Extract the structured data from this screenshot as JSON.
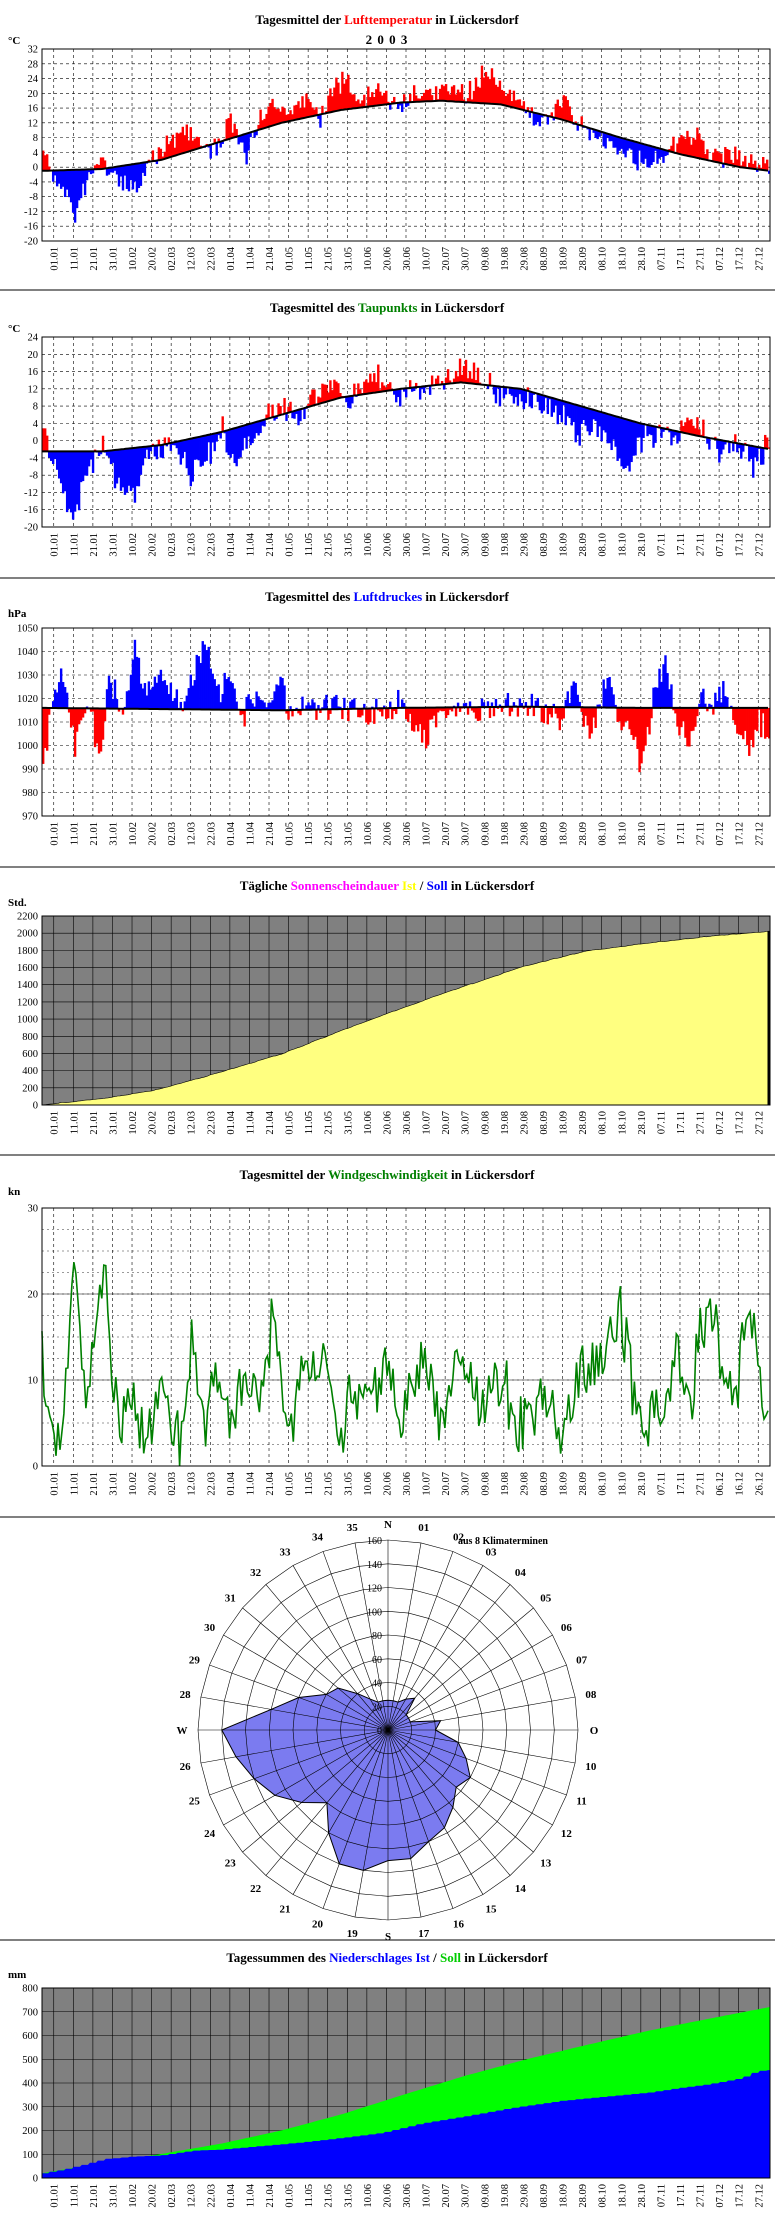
{
  "panels": {
    "temp": {
      "title": [
        {
          "text": "Tagesmittel der ",
          "color": "#000000"
        },
        {
          "text": "Lufttemperatur",
          "color": "#ff0000"
        },
        {
          "text": " in Lückersdorf",
          "color": "#000000"
        }
      ],
      "subtitle": "2 0 0 3",
      "unit": "°C"
    },
    "dew": {
      "title": [
        {
          "text": "Tagesmittel des ",
          "color": "#000000"
        },
        {
          "text": "Taupunkts",
          "color": "#008000"
        },
        {
          "text": " in Lückersdorf",
          "color": "#000000"
        }
      ],
      "unit": "°C"
    },
    "press": {
      "title": [
        {
          "text": "Tagesmittel des ",
          "color": "#000000"
        },
        {
          "text": "Luftdruckes",
          "color": "#0000ff"
        },
        {
          "text": " in Lückersdorf",
          "color": "#000000"
        }
      ],
      "unit": "hPa"
    },
    "sun": {
      "title": [
        {
          "text": "Tägliche ",
          "color": "#000000"
        },
        {
          "text": "Sonnenscheindauer",
          "color": "#ff00ff"
        },
        {
          "text": " ",
          "color": "#000000"
        },
        {
          "text": "Ist",
          "color": "#ffff00"
        },
        {
          "text": " / ",
          "color": "#000000"
        },
        {
          "text": "Soll",
          "color": "#0000ff"
        },
        {
          "text": " in Lückersdorf",
          "color": "#000000"
        }
      ],
      "unit": "Std."
    },
    "wind": {
      "title": [
        {
          "text": "Tagesmittel der ",
          "color": "#000000"
        },
        {
          "text": "Windgeschwindigkeit",
          "color": "#008000"
        },
        {
          "text": " in Lückersdorf",
          "color": "#000000"
        }
      ],
      "unit": "kn"
    },
    "rose": {
      "note": "aus 8 Klimaterminen"
    },
    "rain": {
      "title": [
        {
          "text": "Tagessummen des ",
          "color": "#000000"
        },
        {
          "text": "Niederschlages",
          "color": "#0000ff"
        },
        {
          "text": " ",
          "color": "#000000"
        },
        {
          "text": "Ist",
          "color": "#0000ff"
        },
        {
          "text": " / ",
          "color": "#000000"
        },
        {
          "text": "Soll",
          "color": "#00cc00"
        },
        {
          "text": " in Lückersdorf",
          "color": "#000000"
        }
      ],
      "unit": "mm"
    }
  },
  "colors": {
    "above": "#ff0000",
    "below": "#0000ff",
    "line": "#000000",
    "sun_fill": "#ffff80",
    "plot_gray": "#808080",
    "wind_line": "#008000",
    "rose_fill": "#7b7bf0",
    "rain_ist": "#0000ff",
    "rain_soll": "#00ff00"
  },
  "chart_data": [
    {
      "id": "temp",
      "type": "area",
      "ylabel": "°C",
      "ylim": [
        -20,
        32
      ],
      "yticks": [
        -20,
        -16,
        -12,
        -8,
        -4,
        0,
        4,
        8,
        12,
        16,
        20,
        24,
        28,
        32
      ],
      "xticks": [
        "01.01",
        "11.01",
        "21.01",
        "31.01",
        "10.02",
        "20.02",
        "02.03",
        "12.03",
        "22.03",
        "01.04",
        "11.04",
        "21.04",
        "01.05",
        "11.05",
        "21.05",
        "31.05",
        "10.06",
        "20.06",
        "30.06",
        "10.07",
        "20.07",
        "30.07",
        "09.08",
        "19.08",
        "29.08",
        "08.09",
        "18.09",
        "28.09",
        "08.10",
        "18.10",
        "28.10",
        "07.11",
        "17.11",
        "27.11",
        "07.12",
        "17.12",
        "27.12"
      ],
      "normal_anchors": {
        "day": [
          0,
          30,
          60,
          90,
          120,
          150,
          180,
          200,
          230,
          260,
          290,
          320,
          350,
          365
        ],
        "value": [
          -1,
          -0.5,
          2,
          7,
          12,
          15.5,
          17.5,
          18,
          17,
          13,
          8,
          3.5,
          0,
          -1
        ]
      },
      "observed_anchors": {
        "day": [
          0,
          5,
          12,
          16,
          22,
          30,
          38,
          45,
          52,
          58,
          66,
          74,
          82,
          88,
          95,
          102,
          108,
          115,
          122,
          130,
          138,
          145,
          152,
          158,
          165,
          172,
          180,
          188,
          195,
          205,
          212,
          218,
          225,
          232,
          240,
          248,
          255,
          262,
          268,
          275,
          282,
          290,
          298,
          305,
          312,
          320,
          328,
          335,
          342,
          350,
          358,
          365
        ],
        "value": [
          4,
          -2,
          -8,
          -14,
          -3,
          2,
          -4,
          -6,
          1,
          3,
          8,
          10,
          4,
          6,
          12,
          2,
          13,
          17,
          14,
          19,
          12,
          22,
          23,
          18,
          20,
          19,
          17,
          20,
          19,
          23,
          19,
          24,
          26,
          22,
          18,
          12,
          14,
          20,
          11,
          10,
          7,
          4,
          2,
          1,
          3,
          9,
          8,
          4,
          3,
          2,
          1,
          -1
        ]
      },
      "summary": "Daily mean air temperature 2003; red where above the long-term mean, blue where below"
    },
    {
      "id": "dew",
      "type": "area",
      "ylabel": "°C",
      "ylim": [
        -20,
        24
      ],
      "yticks": [
        -20,
        -16,
        -12,
        -8,
        -4,
        0,
        4,
        8,
        12,
        16,
        20,
        24
      ],
      "xticks": [
        "01.01",
        "11.01",
        "21.01",
        "31.01",
        "10.02",
        "20.02",
        "02.03",
        "12.03",
        "22.03",
        "01.04",
        "11.04",
        "21.04",
        "01.05",
        "11.05",
        "21.05",
        "31.05",
        "10.06",
        "20.06",
        "30.06",
        "10.07",
        "20.07",
        "30.07",
        "09.08",
        "19.08",
        "29.08",
        "08.09",
        "18.09",
        "28.09",
        "08.10",
        "18.10",
        "28.10",
        "07.11",
        "17.11",
        "27.11",
        "07.12",
        "17.12",
        "27.12"
      ],
      "normal_anchors": {
        "day": [
          0,
          30,
          60,
          90,
          120,
          150,
          180,
          210,
          240,
          270,
          300,
          330,
          365
        ],
        "value": [
          -2.5,
          -2.5,
          -1,
          2,
          6,
          10,
          12,
          13.5,
          12,
          8,
          4,
          1,
          -2
        ]
      },
      "observed_anchors": {
        "day": [
          0,
          6,
          12,
          16,
          22,
          30,
          38,
          45,
          52,
          58,
          66,
          74,
          82,
          90,
          98,
          105,
          112,
          120,
          128,
          136,
          145,
          152,
          160,
          168,
          176,
          185,
          195,
          205,
          212,
          220,
          228,
          236,
          244,
          252,
          260,
          268,
          276,
          284,
          292,
          300,
          308,
          316,
          324,
          332,
          340,
          348,
          356,
          365
        ],
        "value": [
          2,
          -6,
          -14,
          -18,
          -6,
          -2,
          -10,
          -13,
          -4,
          -2,
          0,
          -8,
          -3,
          2,
          -6,
          1,
          5,
          8,
          5,
          11,
          14,
          9,
          13,
          15,
          10,
          11,
          13,
          15,
          17,
          14,
          11,
          9,
          10,
          8,
          6,
          2,
          4,
          -2,
          -5,
          0,
          2,
          1,
          5,
          3,
          -3,
          0,
          -5,
          -1
        ]
      },
      "summary": "Daily mean dew point 2003; red above normal, blue below"
    },
    {
      "id": "press",
      "type": "area",
      "ylabel": "hPa",
      "ylim": [
        970,
        1050
      ],
      "yticks": [
        970,
        980,
        990,
        1000,
        1010,
        1020,
        1030,
        1040,
        1050
      ],
      "xticks": [
        "01.01",
        "11.01",
        "21.01",
        "31.01",
        "10.02",
        "20.02",
        "02.03",
        "12.03",
        "22.03",
        "01.04",
        "11.04",
        "21.04",
        "01.05",
        "11.05",
        "21.05",
        "31.05",
        "10.06",
        "20.06",
        "30.06",
        "10.07",
        "20.07",
        "30.07",
        "09.08",
        "19.08",
        "29.08",
        "08.09",
        "18.09",
        "28.09",
        "08.10",
        "18.10",
        "28.10",
        "07.11",
        "17.11",
        "27.11",
        "07.12",
        "17.12",
        "27.12"
      ],
      "normal_anchors": {
        "day": [
          0,
          60,
          120,
          180,
          240,
          300,
          365
        ],
        "value": [
          1016,
          1015.5,
          1015,
          1016,
          1016.5,
          1016,
          1016
        ]
      },
      "observed_anchors": {
        "day": [
          0,
          4,
          10,
          16,
          22,
          28,
          34,
          40,
          46,
          52,
          58,
          64,
          70,
          76,
          82,
          88,
          94,
          100,
          106,
          112,
          118,
          124,
          130,
          140,
          150,
          160,
          170,
          180,
          190,
          200,
          210,
          220,
          230,
          240,
          250,
          258,
          266,
          274,
          282,
          288,
          294,
          300,
          306,
          312,
          318,
          324,
          330,
          336,
          342,
          348,
          354,
          360,
          365
        ],
        "value": [
          992,
          1015,
          1030,
          1000,
          1020,
          996,
          1030,
          1010,
          1040,
          1020,
          1028,
          1025,
          1014,
          1035,
          1043,
          1020,
          1030,
          1010,
          1022,
          1015,
          1028,
          1012,
          1018,
          1015,
          1017,
          1016,
          1014,
          1018,
          1002,
          1014,
          1018,
          1015,
          1017,
          1018,
          1016,
          1010,
          1024,
          1002,
          1028,
          1015,
          1005,
          992,
          1020,
          1035,
          1010,
          1000,
          1022,
          1015,
          1025,
          1008,
          1000,
          1010,
          1003
        ]
      },
      "summary": "Daily mean air pressure 2003; blue above normal, red below"
    },
    {
      "id": "sun",
      "type": "area",
      "ylabel": "Std.",
      "ylim": [
        0,
        2200
      ],
      "yticks": [
        0,
        200,
        400,
        600,
        800,
        1000,
        1200,
        1400,
        1600,
        1800,
        2000,
        2200
      ],
      "xticks": [
        "01.01",
        "11.01",
        "21.01",
        "31.01",
        "10.02",
        "20.02",
        "02.03",
        "12.03",
        "22.03",
        "01.04",
        "11.04",
        "21.04",
        "01.05",
        "11.05",
        "21.05",
        "31.05",
        "10.06",
        "20.06",
        "30.06",
        "10.07",
        "20.07",
        "30.07",
        "09.08",
        "19.08",
        "29.08",
        "08.09",
        "18.09",
        "28.09",
        "08.10",
        "18.10",
        "28.10",
        "07.11",
        "17.11",
        "27.11",
        "07.12",
        "17.12",
        "27.12"
      ],
      "cumulative_anchors": {
        "day": [
          0,
          31,
          59,
          90,
          120,
          151,
          181,
          212,
          243,
          273,
          304,
          334,
          365
        ],
        "value": [
          0,
          70,
          180,
          380,
          590,
          870,
          1130,
          1380,
          1620,
          1790,
          1880,
          1960,
          2020
        ]
      },
      "summary": "Cumulative daily sunshine duration (hours), yellow area"
    },
    {
      "id": "wind",
      "type": "line",
      "ylabel": "kn",
      "ylim": [
        0,
        30
      ],
      "yticks": [
        0,
        10,
        20,
        30
      ],
      "xticks": [
        "01.01",
        "11.01",
        "21.01",
        "31.01",
        "10.02",
        "20.02",
        "02.03",
        "12.03",
        "22.03",
        "01.04",
        "11.04",
        "21.04",
        "01.05",
        "11.05",
        "21.05",
        "31.05",
        "10.06",
        "20.06",
        "30.06",
        "10.07",
        "20.07",
        "30.07",
        "09.08",
        "19.08",
        "29.08",
        "08.09",
        "18.09",
        "28.09",
        "08.10",
        "18.10",
        "28.10",
        "07.11",
        "17.11",
        "27.11",
        "06.12",
        "16.12",
        "26.12"
      ],
      "anchors": {
        "day": [
          0,
          4,
          8,
          12,
          16,
          20,
          24,
          28,
          32,
          36,
          40,
          46,
          52,
          58,
          64,
          70,
          76,
          82,
          88,
          94,
          100,
          108,
          116,
          124,
          132,
          140,
          148,
          156,
          164,
          172,
          180,
          190,
          200,
          210,
          220,
          230,
          240,
          250,
          260,
          270,
          280,
          290,
          300,
          306,
          312,
          318,
          324,
          330,
          336,
          342,
          348,
          354,
          360,
          365
        ],
        "value": [
          14,
          4,
          1,
          8,
          23,
          12,
          10,
          18,
          21,
          8,
          4,
          6,
          3,
          9,
          5,
          4,
          15,
          3,
          12,
          5,
          9,
          6,
          17,
          4,
          11,
          14,
          3,
          8,
          6,
          13,
          4,
          14,
          5,
          12,
          6,
          10,
          4,
          9,
          3,
          11,
          12,
          17,
          4,
          7,
          3,
          14,
          6,
          15,
          19,
          9,
          7,
          21,
          10,
          5
        ]
      },
      "summary": "Daily mean wind speed in knots, green line"
    },
    {
      "id": "rose",
      "type": "radar",
      "rlim": [
        0,
        160
      ],
      "rticks": [
        0,
        20,
        40,
        60,
        80,
        100,
        120,
        140,
        160
      ],
      "spokes": [
        "N",
        "01",
        "02",
        "03",
        "04",
        "05",
        "06",
        "07",
        "08",
        "O",
        "10",
        "11",
        "12",
        "13",
        "14",
        "15",
        "16",
        "17",
        "S",
        "19",
        "20",
        "21",
        "22",
        "23",
        "24",
        "25",
        "26",
        "W",
        "28",
        "29",
        "30",
        "31",
        "32",
        "33",
        "34",
        "35"
      ],
      "values": [
        25,
        25,
        25,
        30,
        35,
        20,
        20,
        20,
        45,
        40,
        60,
        70,
        80,
        75,
        85,
        95,
        100,
        110,
        110,
        120,
        120,
        100,
        80,
        95,
        110,
        120,
        130,
        140,
        100,
        80,
        60,
        55,
        40,
        30,
        25,
        25
      ],
      "summary": "Wind direction frequency from 36 sectors"
    },
    {
      "id": "rain",
      "type": "area",
      "ylabel": "mm",
      "ylim": [
        0,
        800
      ],
      "yticks": [
        0,
        100,
        200,
        300,
        400,
        500,
        600,
        700,
        800
      ],
      "xticks": [
        "01.01",
        "11.01",
        "21.01",
        "31.01",
        "10.02",
        "20.02",
        "02.03",
        "12.03",
        "22.03",
        "01.04",
        "11.04",
        "21.04",
        "01.05",
        "11.05",
        "21.05",
        "31.05",
        "10.06",
        "20.06",
        "30.06",
        "10.07",
        "20.07",
        "30.07",
        "09.08",
        "19.08",
        "29.08",
        "08.09",
        "18.09",
        "28.09",
        "08.10",
        "18.10",
        "28.10",
        "07.11",
        "17.11",
        "27.11",
        "07.12",
        "17.12",
        "27.12"
      ],
      "ist_anchors": {
        "day": [
          0,
          10,
          20,
          31,
          45,
          59,
          75,
          90,
          110,
          130,
          151,
          170,
          190,
          212,
          235,
          260,
          285,
          304,
          320,
          334,
          350,
          358,
          365
        ],
        "value": [
          20,
          35,
          55,
          80,
          90,
          95,
          115,
          120,
          135,
          150,
          170,
          190,
          230,
          260,
          295,
          325,
          345,
          360,
          380,
          395,
          420,
          450,
          455
        ]
      },
      "soll_anchors": {
        "day": [
          0,
          31,
          59,
          90,
          120,
          151,
          181,
          212,
          243,
          273,
          304,
          334,
          365
        ],
        "value": [
          20,
          65,
          100,
          145,
          200,
          270,
          350,
          430,
          500,
          560,
          620,
          670,
          720
        ]
      },
      "summary": "Cumulative daily precipitation, blue actual (Ist) vs green normal (Soll)"
    }
  ]
}
